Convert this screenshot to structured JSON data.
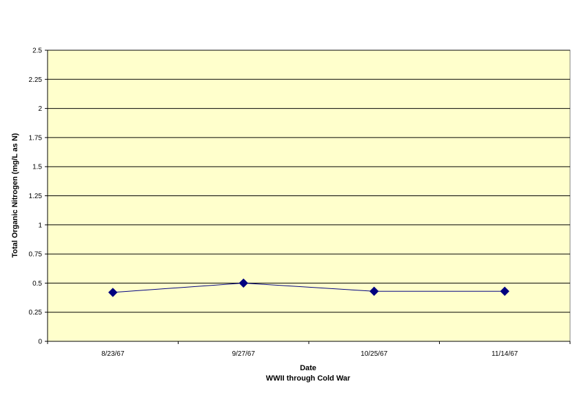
{
  "chart_data": {
    "type": "line",
    "categories": [
      "8/23/67",
      "9/27/67",
      "10/25/67",
      "11/14/67"
    ],
    "series": [
      {
        "values": [
          0.42,
          0.5,
          0.43,
          0.43
        ],
        "color": "#000080"
      }
    ],
    "xlabel": "Date",
    "xlabel2": "WWII through Cold War",
    "ylabel": "Total Organic Nitrogen (mg/L as N)",
    "ylim": [
      0,
      2.5
    ],
    "yticks": [
      "0",
      "0.25",
      "0.5",
      "0.75",
      "1",
      "1.25",
      "1.5",
      "1.75",
      "2",
      "2.25",
      "2.5"
    ],
    "grid": true,
    "legend": "none",
    "plot_background": "#ffffcc",
    "line_color": "#000080"
  }
}
